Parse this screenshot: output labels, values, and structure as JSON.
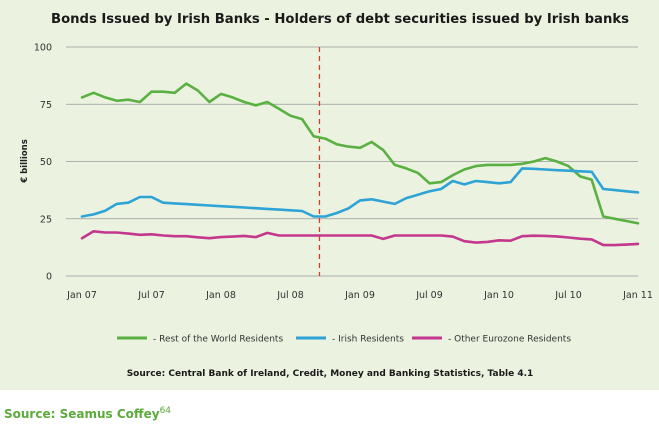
{
  "chart_data": {
    "type": "line",
    "title": "Bonds Issued by Irish Banks - Holders of debt securities issued by Irish banks",
    "ylabel": "€ billions",
    "xlabel": "",
    "ylim": [
      0,
      100
    ],
    "yticks": [
      "0",
      "25",
      "50",
      "75",
      "100"
    ],
    "xticks": [
      "Jan 07",
      "Jul 07",
      "Jan 08",
      "Jul 08",
      "Jan 09",
      "Jul 09",
      "Jan 10",
      "Jul 10",
      "Jan 11"
    ],
    "grid": true,
    "marker_line": {
      "x": 20.5,
      "style": "dashed",
      "color": "#d93b2b"
    },
    "source": "Source: Central Bank of Ireland, Credit, Money and Banking Statistics, Table 4.1",
    "x": [
      0,
      1,
      2,
      3,
      4,
      5,
      6,
      7,
      8,
      9,
      10,
      11,
      12,
      13,
      14,
      15,
      16,
      17,
      18,
      19,
      20,
      21,
      22,
      23,
      24,
      25,
      26,
      27,
      28,
      29,
      30,
      31,
      32,
      33,
      34,
      35,
      36,
      37,
      38,
      39,
      40,
      41,
      42,
      43,
      44,
      45,
      46,
      47,
      48
    ],
    "series": [
      {
        "name": "- Rest of the World Residents",
        "color": "#5bb043",
        "values": [
          78,
          80,
          78,
          76.5,
          77,
          76,
          80.5,
          80.5,
          80,
          84,
          81,
          76,
          79.5,
          78,
          76,
          74.5,
          76,
          73,
          70,
          68.5,
          61,
          60,
          57.5,
          56.5,
          56,
          58.5,
          55,
          48.5,
          47,
          45,
          40.5,
          41,
          44,
          46.5,
          48,
          48.5,
          48.5,
          48.5,
          49,
          50,
          51.5,
          50,
          48,
          43.5,
          42,
          26,
          25,
          24,
          23
        ]
      },
      {
        "name": "- Irish Residents",
        "color": "#2ea3d6",
        "values": [
          26,
          26.9,
          28.5,
          31.5,
          32,
          34.5,
          34.5,
          32,
          31.7,
          31.4,
          31.1,
          30.8,
          30.5,
          30.2,
          29.9,
          29.6,
          29.3,
          29,
          28.7,
          28.4,
          26,
          26,
          27.5,
          29.5,
          33,
          33.5,
          32.5,
          31.5,
          34,
          35.5,
          37,
          38,
          41.5,
          40,
          41.5,
          41,
          40.5,
          41,
          47,
          46.8,
          46.5,
          46.2,
          46,
          45.7,
          45.5,
          38,
          37.5,
          37,
          36.5
        ]
      },
      {
        "name": "- Other Eurozone Residents",
        "color": "#c4378e",
        "values": [
          16.5,
          19.5,
          19,
          19,
          18.5,
          18,
          18.2,
          17.7,
          17.4,
          17.4,
          16.9,
          16.5,
          17,
          17.2,
          17.5,
          17,
          18.8,
          17.7,
          17.7,
          17.7,
          17.7,
          17.7,
          17.7,
          17.7,
          17.7,
          17.7,
          16.2,
          17.7,
          17.7,
          17.7,
          17.7,
          17.7,
          17.2,
          15.2,
          14.6,
          14.9,
          15.6,
          15.4,
          17.4,
          17.6,
          17.5,
          17.3,
          16.8,
          16.3,
          16,
          13.5,
          13.5,
          13.7,
          14
        ]
      }
    ]
  },
  "footer": {
    "source_label": "Source: Seamus Coffey",
    "footnote_number": "64"
  },
  "colors": {
    "panel_background": "#ebf2e0",
    "footer_text": "#5bab3b",
    "grid": "#9a9a9a"
  }
}
